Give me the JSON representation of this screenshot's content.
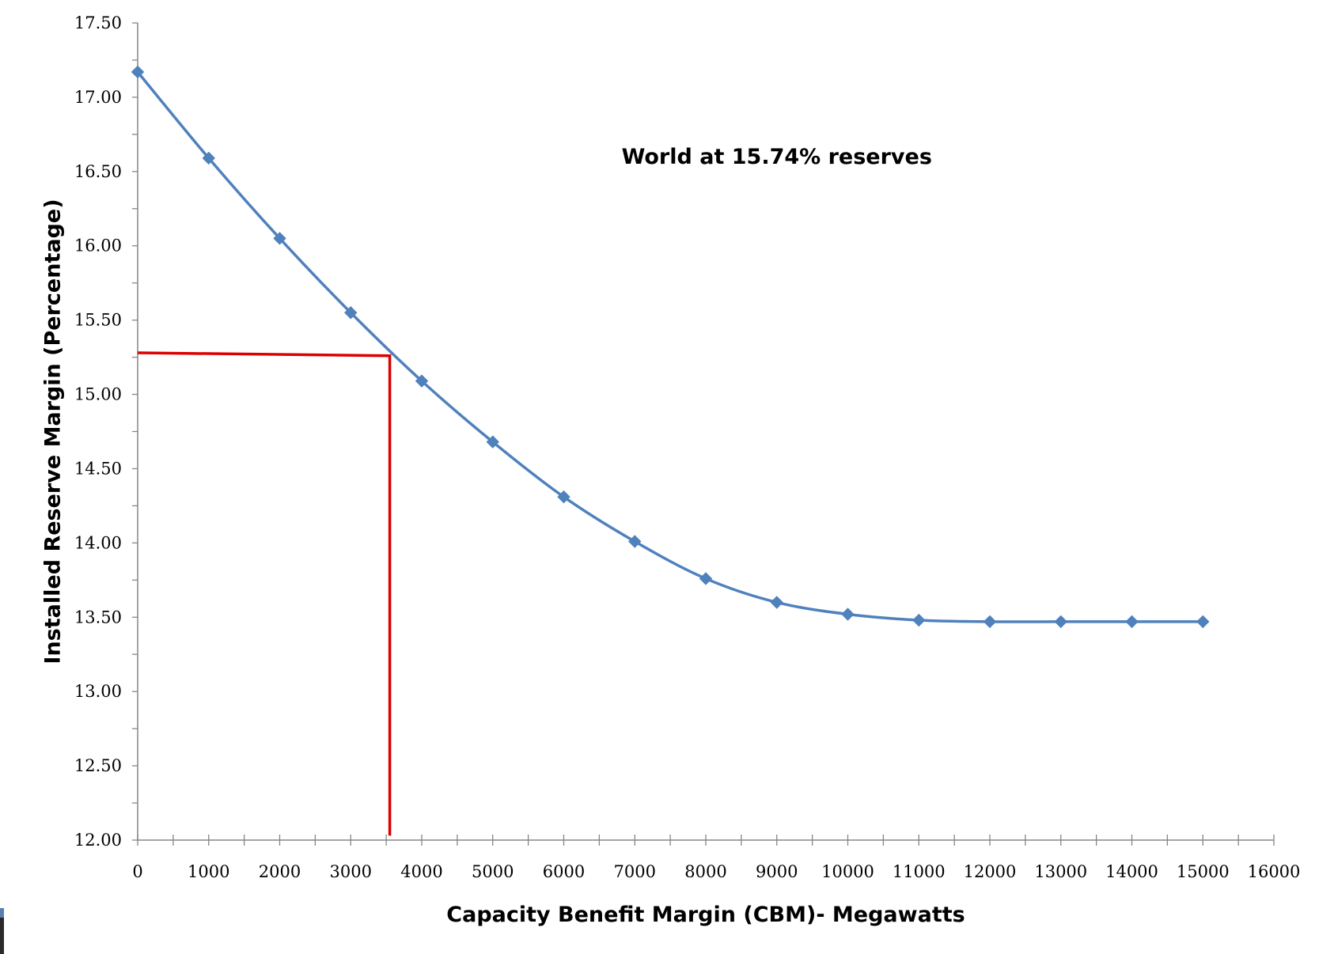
{
  "chart_data": {
    "type": "line",
    "title": "",
    "xlabel": "Capacity Benefit Margin (CBM)- Megawatts",
    "ylabel": "Installed Reserve Margin (Percentage)",
    "xlim": [
      0,
      16000
    ],
    "ylim": [
      12.0,
      17.5
    ],
    "x_ticks": [
      0,
      1000,
      2000,
      3000,
      4000,
      5000,
      6000,
      7000,
      8000,
      9000,
      10000,
      11000,
      12000,
      13000,
      14000,
      15000,
      16000
    ],
    "y_ticks": [
      "12.00",
      "12.50",
      "13.00",
      "13.50",
      "14.00",
      "14.50",
      "15.00",
      "15.50",
      "16.00",
      "16.50",
      "17.00",
      "17.50"
    ],
    "grid": false,
    "legend": "none",
    "series": [
      {
        "color": "#4f81bd",
        "marker": "diamond",
        "x": [
          0,
          1000,
          2000,
          3000,
          4000,
          5000,
          6000,
          7000,
          8000,
          9000,
          10000,
          11000,
          12000,
          13000,
          14000,
          15000
        ],
        "y": [
          17.17,
          16.59,
          16.05,
          15.55,
          15.09,
          14.68,
          14.31,
          14.01,
          13.76,
          13.6,
          13.52,
          13.48,
          13.47,
          13.47,
          13.47,
          13.47
        ]
      }
    ],
    "annotations": [
      {
        "text": "World at 15.74% reserves",
        "x": 9000,
        "y": 16.6
      }
    ],
    "reference_lines": [
      {
        "color": "#dd0000",
        "points": [
          [
            0,
            15.28
          ],
          [
            3550,
            15.26
          ],
          [
            3550,
            12.03
          ]
        ]
      }
    ]
  }
}
